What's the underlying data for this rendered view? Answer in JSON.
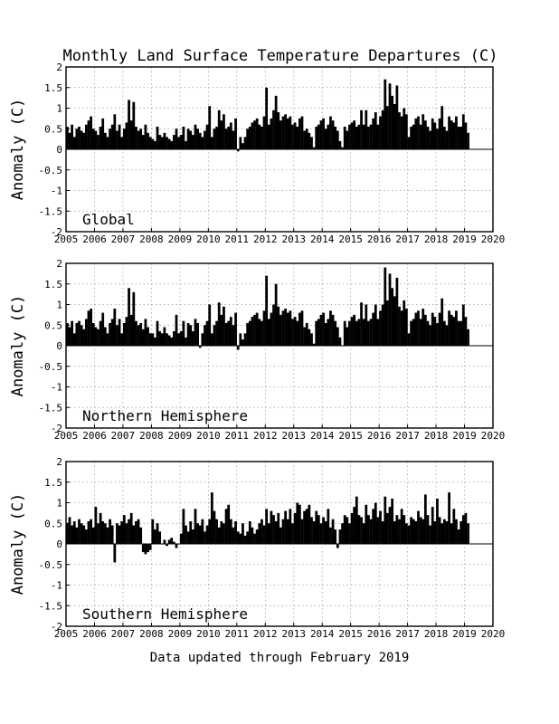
{
  "chart_data": [
    {
      "type": "bar",
      "panel": "Global",
      "title": "Monthly Land Surface Temperature Departures (C)",
      "ylabel": "Anomaly (C)",
      "xlim": [
        2005,
        2020
      ],
      "ylim": [
        -2,
        2
      ],
      "xticks": [
        "2005",
        "2006",
        "2007",
        "2008",
        "2009",
        "2010",
        "2011",
        "2012",
        "2013",
        "2014",
        "2015",
        "2016",
        "2017",
        "2018",
        "2019",
        "2020"
      ],
      "yticks": [
        "-2",
        "-1.5",
        "-1",
        "-0.5",
        "0",
        "0.5",
        "1",
        "1.5",
        "2"
      ],
      "grid": true,
      "x_start": "2005-01",
      "values": [
        0.55,
        0.4,
        0.6,
        0.3,
        0.5,
        0.55,
        0.45,
        0.4,
        0.6,
        0.7,
        0.8,
        0.5,
        0.45,
        0.35,
        0.55,
        0.75,
        0.4,
        0.3,
        0.5,
        0.6,
        0.85,
        0.45,
        0.6,
        0.3,
        0.5,
        0.65,
        1.2,
        0.7,
        1.15,
        0.55,
        0.45,
        0.5,
        0.35,
        0.6,
        0.4,
        0.3,
        0.25,
        0.2,
        0.55,
        0.35,
        0.3,
        0.4,
        0.3,
        0.25,
        0.2,
        0.35,
        0.5,
        0.3,
        0.35,
        0.55,
        0.2,
        0.5,
        0.45,
        0.35,
        0.6,
        0.5,
        0.4,
        0.3,
        0.45,
        0.6,
        1.05,
        0.3,
        0.5,
        0.55,
        0.95,
        0.7,
        0.85,
        0.5,
        0.55,
        0.65,
        0.45,
        0.75,
        -0.05,
        0.3,
        0.15,
        0.3,
        0.5,
        0.55,
        0.65,
        0.7,
        0.75,
        0.6,
        0.55,
        0.8,
        1.5,
        0.6,
        0.75,
        0.95,
        1.3,
        0.9,
        0.7,
        0.8,
        0.85,
        0.75,
        0.8,
        0.6,
        0.65,
        0.55,
        0.75,
        0.8,
        0.45,
        0.5,
        0.4,
        0.3,
        0.05,
        0.55,
        0.6,
        0.7,
        0.75,
        0.5,
        0.6,
        0.8,
        0.7,
        0.55,
        0.45,
        0.2,
        0.05,
        0.55,
        0.45,
        0.6,
        0.65,
        0.7,
        0.55,
        0.6,
        0.95,
        0.6,
        0.95,
        0.55,
        0.6,
        0.75,
        0.9,
        0.6,
        0.8,
        0.95,
        1.7,
        1.05,
        1.6,
        1.3,
        1.1,
        1.55,
        0.9,
        0.8,
        1.0,
        0.85,
        0.3,
        0.55,
        0.6,
        0.75,
        0.8,
        0.6,
        0.85,
        0.7,
        0.55,
        0.45,
        0.75,
        0.65,
        0.5,
        0.75,
        1.05,
        0.55,
        0.45,
        0.8,
        0.7,
        0.65,
        0.8,
        0.55,
        0.55,
        0.85,
        0.65,
        0.4
      ],
      "label": "Global"
    },
    {
      "type": "bar",
      "panel": "Northern Hemisphere",
      "ylabel": "Anomaly (C)",
      "xlim": [
        2005,
        2020
      ],
      "ylim": [
        -2,
        2
      ],
      "xticks": [
        "2005",
        "2006",
        "2007",
        "2008",
        "2009",
        "2010",
        "2011",
        "2012",
        "2013",
        "2014",
        "2015",
        "2016",
        "2017",
        "2018",
        "2019",
        "2020"
      ],
      "yticks": [
        "-2",
        "-1.5",
        "-1",
        "-0.5",
        "0",
        "0.5",
        "1",
        "1.5",
        "2"
      ],
      "grid": true,
      "x_start": "2005-01",
      "values": [
        0.55,
        0.45,
        0.6,
        0.3,
        0.55,
        0.6,
        0.5,
        0.4,
        0.65,
        0.85,
        0.9,
        0.55,
        0.45,
        0.4,
        0.6,
        0.8,
        0.45,
        0.3,
        0.55,
        0.65,
        0.9,
        0.5,
        0.65,
        0.3,
        0.55,
        0.7,
        1.4,
        0.75,
        1.3,
        0.6,
        0.5,
        0.55,
        0.4,
        0.65,
        0.45,
        0.3,
        0.3,
        0.2,
        0.6,
        0.35,
        0.3,
        0.45,
        0.3,
        0.25,
        0.2,
        0.35,
        0.75,
        0.3,
        0.35,
        0.6,
        0.2,
        0.55,
        0.5,
        0.35,
        0.65,
        0.55,
        -0.05,
        0.3,
        0.5,
        0.6,
        1.0,
        0.3,
        0.5,
        0.6,
        1.05,
        0.75,
        0.95,
        0.55,
        0.6,
        0.7,
        0.5,
        0.8,
        -0.1,
        0.3,
        0.15,
        0.3,
        0.55,
        0.6,
        0.7,
        0.75,
        0.8,
        0.65,
        0.6,
        0.85,
        1.7,
        0.65,
        0.8,
        1.0,
        1.5,
        0.95,
        0.75,
        0.85,
        0.9,
        0.8,
        0.85,
        0.65,
        0.7,
        0.6,
        0.8,
        0.85,
        0.45,
        0.55,
        0.4,
        0.3,
        0.05,
        0.6,
        0.65,
        0.75,
        0.8,
        0.55,
        0.65,
        0.85,
        0.75,
        0.6,
        0.45,
        0.2,
        0.0,
        0.6,
        0.45,
        0.6,
        0.7,
        0.75,
        0.6,
        0.65,
        1.05,
        0.65,
        1.0,
        0.6,
        0.65,
        0.8,
        1.0,
        0.65,
        0.85,
        1.0,
        1.9,
        1.1,
        1.75,
        1.4,
        1.2,
        1.65,
        0.95,
        0.85,
        1.1,
        0.9,
        0.3,
        0.6,
        0.65,
        0.8,
        0.85,
        0.65,
        0.9,
        0.75,
        0.6,
        0.5,
        0.8,
        0.7,
        0.55,
        0.8,
        1.15,
        0.6,
        0.5,
        0.85,
        0.75,
        0.7,
        0.85,
        0.6,
        0.6,
        1.0,
        0.7,
        0.4
      ],
      "label": "Northern Hemisphere"
    },
    {
      "type": "bar",
      "panel": "Southern Hemisphere",
      "ylabel": "Anomaly (C)",
      "xlim": [
        2005,
        2020
      ],
      "ylim": [
        -2,
        2
      ],
      "xticks": [
        "2005",
        "2006",
        "2007",
        "2008",
        "2009",
        "2010",
        "2011",
        "2012",
        "2013",
        "2014",
        "2015",
        "2016",
        "2017",
        "2018",
        "2019",
        "2020"
      ],
      "yticks": [
        "-2",
        "-1.5",
        "-1",
        "-0.5",
        "0",
        "0.5",
        "1",
        "1.5",
        "2"
      ],
      "grid": true,
      "x_start": "2005-01",
      "values": [
        0.5,
        0.65,
        0.45,
        0.55,
        0.4,
        0.6,
        0.5,
        0.45,
        0.35,
        0.55,
        0.6,
        0.4,
        0.9,
        0.5,
        0.75,
        0.55,
        0.5,
        0.4,
        0.6,
        0.45,
        -0.45,
        0.5,
        0.45,
        0.55,
        0.7,
        0.5,
        0.6,
        0.75,
        0.45,
        0.55,
        0.6,
        0.4,
        -0.2,
        -0.25,
        -0.2,
        -0.15,
        0.6,
        0.35,
        0.5,
        0.3,
        0.0,
        0.1,
        -0.05,
        0.1,
        0.15,
        0.05,
        -0.1,
        0.0,
        0.25,
        0.85,
        0.45,
        0.3,
        0.55,
        0.35,
        0.85,
        0.5,
        0.45,
        0.6,
        0.3,
        0.45,
        0.6,
        1.25,
        0.8,
        0.6,
        0.4,
        0.55,
        0.5,
        0.85,
        0.95,
        0.6,
        0.4,
        0.55,
        0.3,
        0.25,
        0.5,
        0.2,
        0.3,
        0.55,
        0.4,
        0.25,
        0.35,
        0.5,
        0.6,
        0.45,
        0.85,
        0.5,
        0.8,
        0.7,
        0.55,
        0.75,
        0.4,
        0.6,
        0.8,
        0.6,
        0.85,
        0.5,
        0.75,
        1.0,
        0.95,
        0.6,
        0.8,
        0.85,
        0.95,
        0.65,
        0.55,
        0.8,
        0.7,
        0.5,
        0.65,
        0.55,
        0.85,
        0.4,
        0.6,
        0.35,
        -0.1,
        0.35,
        0.5,
        0.7,
        0.65,
        0.5,
        0.75,
        0.9,
        1.15,
        0.7,
        0.65,
        0.5,
        0.95,
        0.7,
        0.6,
        0.85,
        1.0,
        0.65,
        0.8,
        0.55,
        1.15,
        0.75,
        0.9,
        1.1,
        0.55,
        0.7,
        0.6,
        0.85,
        0.7,
        0.5,
        0.45,
        0.65,
        0.6,
        0.55,
        0.8,
        0.65,
        0.6,
        1.2,
        0.7,
        0.45,
        0.9,
        0.55,
        1.1,
        0.65,
        0.5,
        0.6,
        0.55,
        1.25,
        0.5,
        0.85,
        0.6,
        0.35,
        0.55,
        0.7,
        0.75,
        0.5
      ],
      "label": "Southern Hemisphere"
    }
  ],
  "footer": "Data updated through February 2019"
}
